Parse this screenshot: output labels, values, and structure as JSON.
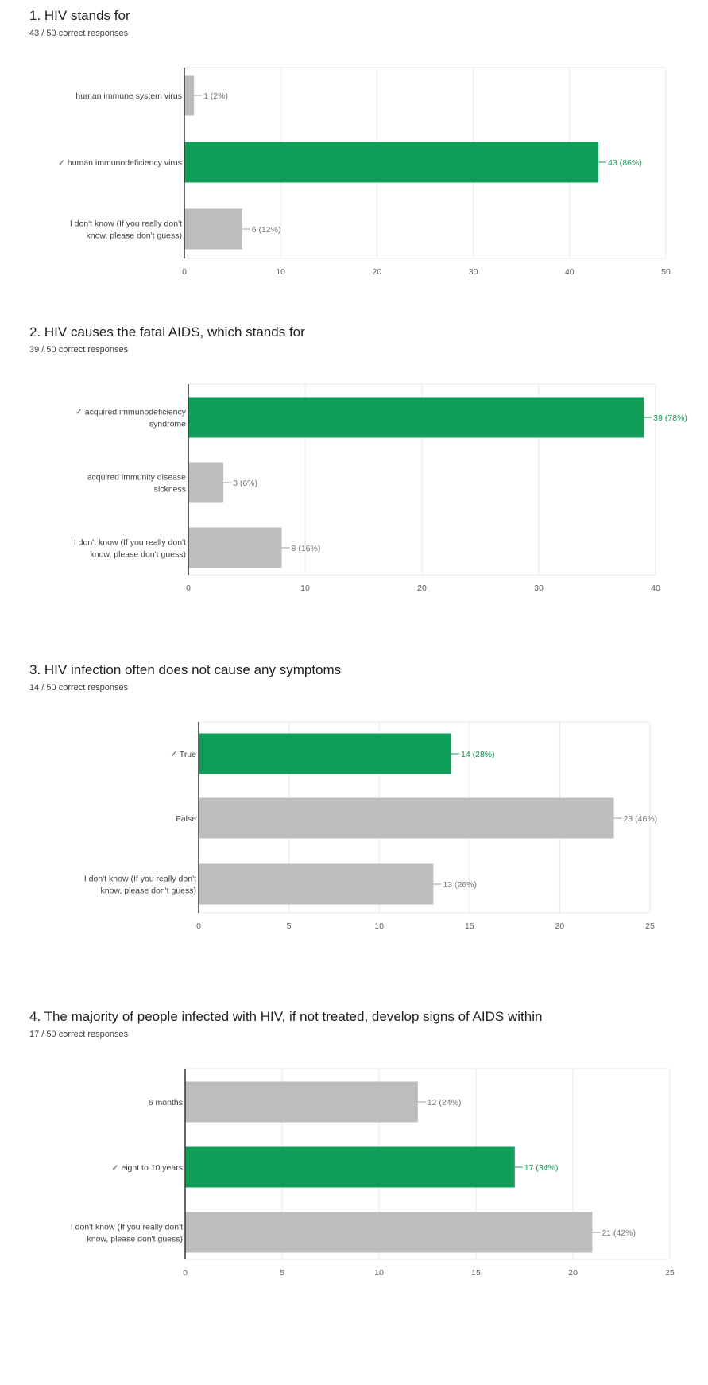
{
  "colors": {
    "correct": "#0f9d58",
    "other": "#bdbdbd",
    "grid": "#e8e8e8",
    "axis": "#333333",
    "text_other": "#777777"
  },
  "chart_data": [
    {
      "type": "bar",
      "orientation": "horizontal",
      "title": "1.  HIV stands for",
      "subtitle": "43 / 50 correct responses",
      "categories": [
        [
          "human immune system virus"
        ],
        [
          "✓ human immunodeficiency virus"
        ],
        [
          "I don't know (If you really don't",
          "know, please don't guess)"
        ]
      ],
      "values": [
        1,
        43,
        6
      ],
      "value_labels": [
        "1 (2%)",
        "43 (86%)",
        "6 (12%)"
      ],
      "correct": [
        false,
        true,
        false
      ],
      "xlim": [
        0,
        50
      ],
      "ticks": [
        "0",
        "10",
        "20",
        "30",
        "40",
        "50"
      ],
      "grid": true
    },
    {
      "type": "bar",
      "orientation": "horizontal",
      "title": "2. HIV causes the fatal AIDS, which stands for",
      "subtitle": "39 / 50 correct responses",
      "categories": [
        [
          "✓ acquired immunodeficiency",
          "syndrome"
        ],
        [
          "acquired immunity disease",
          "sickness"
        ],
        [
          "I don't know (If you really don't",
          "know, please don't guess)"
        ]
      ],
      "values": [
        39,
        3,
        8
      ],
      "value_labels": [
        "39 (78%)",
        "3 (6%)",
        "8 (16%)"
      ],
      "correct": [
        true,
        false,
        false
      ],
      "xlim": [
        0,
        40
      ],
      "ticks": [
        "0",
        "10",
        "20",
        "30",
        "40"
      ],
      "grid": true
    },
    {
      "type": "bar",
      "orientation": "horizontal",
      "title": "3.  HIV infection often does not cause any symptoms",
      "subtitle": "14 / 50 correct responses",
      "categories": [
        [
          "✓ True"
        ],
        [
          "False"
        ],
        [
          "I don't know (If you really don't",
          "know, please don't guess)"
        ]
      ],
      "values": [
        14,
        23,
        13
      ],
      "value_labels": [
        "14 (28%)",
        "23 (46%)",
        "13 (26%)"
      ],
      "correct": [
        true,
        false,
        false
      ],
      "xlim": [
        0,
        25
      ],
      "ticks": [
        "0",
        "5",
        "10",
        "15",
        "20",
        "25"
      ],
      "grid": true
    },
    {
      "type": "bar",
      "orientation": "horizontal",
      "title": "4.  The majority of people infected with HIV, if not treated, develop signs of AIDS within",
      "subtitle": "17 / 50 correct responses",
      "categories": [
        [
          "6 months"
        ],
        [
          "✓ eight to 10 years"
        ],
        [
          "I don't know (If you really don't",
          "know, please don't guess)"
        ]
      ],
      "values": [
        12,
        17,
        21
      ],
      "value_labels": [
        "12 (24%)",
        "17 (34%)",
        "21 (42%)"
      ],
      "correct": [
        false,
        true,
        false
      ],
      "xlim": [
        0,
        25
      ],
      "ticks": [
        "0",
        "5",
        "10",
        "15",
        "20",
        "25"
      ],
      "grid": true
    }
  ]
}
